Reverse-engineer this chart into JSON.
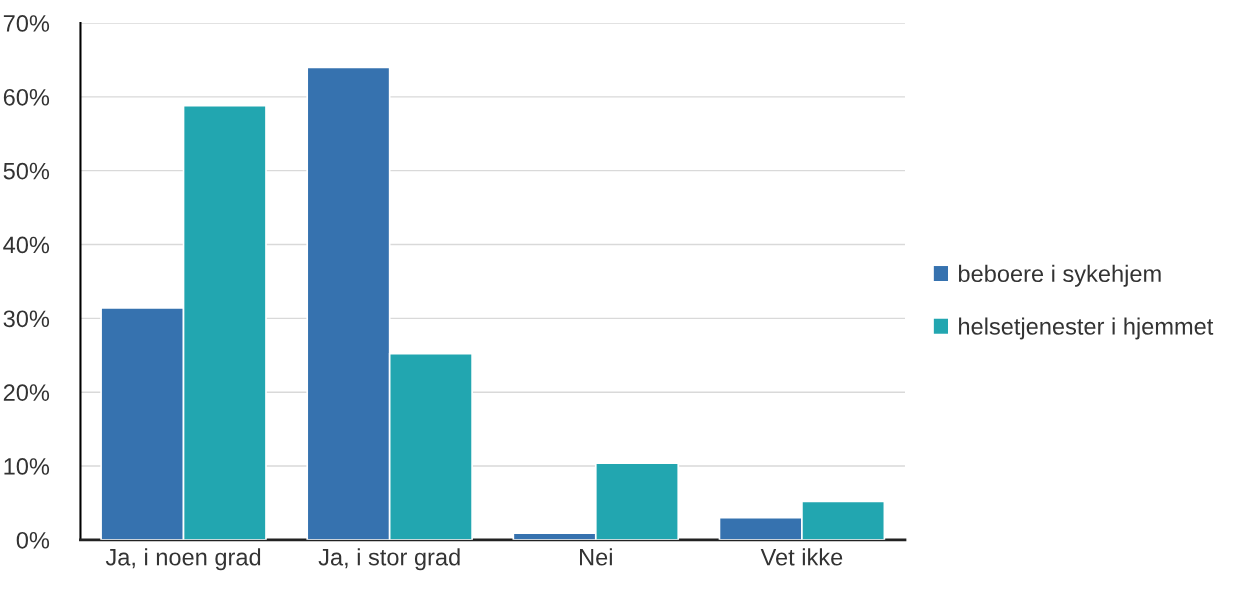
{
  "chart_data": {
    "type": "bar",
    "categories": [
      "Ja, i noen grad",
      "Ja, i stor grad",
      "Nei",
      "Vet ikke"
    ],
    "series": [
      {
        "name": "beboere i sykehjem",
        "color": "#3672af",
        "values": [
          31.4,
          64.0,
          0.9,
          3.0
        ]
      },
      {
        "name": "helsetjenester i hjemmet",
        "color": "#22a6b0",
        "values": [
          58.8,
          25.2,
          10.4,
          5.2
        ]
      }
    ],
    "ylim": [
      0,
      70
    ],
    "yticks": [
      {
        "value": 0,
        "label": "0%"
      },
      {
        "value": 10,
        "label": "10%"
      },
      {
        "value": 20,
        "label": "20%"
      },
      {
        "value": 30,
        "label": "30%"
      },
      {
        "value": 40,
        "label": "40%"
      },
      {
        "value": 50,
        "label": "50%"
      },
      {
        "value": 60,
        "label": "60%"
      },
      {
        "value": 70,
        "label": "70%"
      }
    ],
    "grid": "y",
    "legend": "right"
  }
}
